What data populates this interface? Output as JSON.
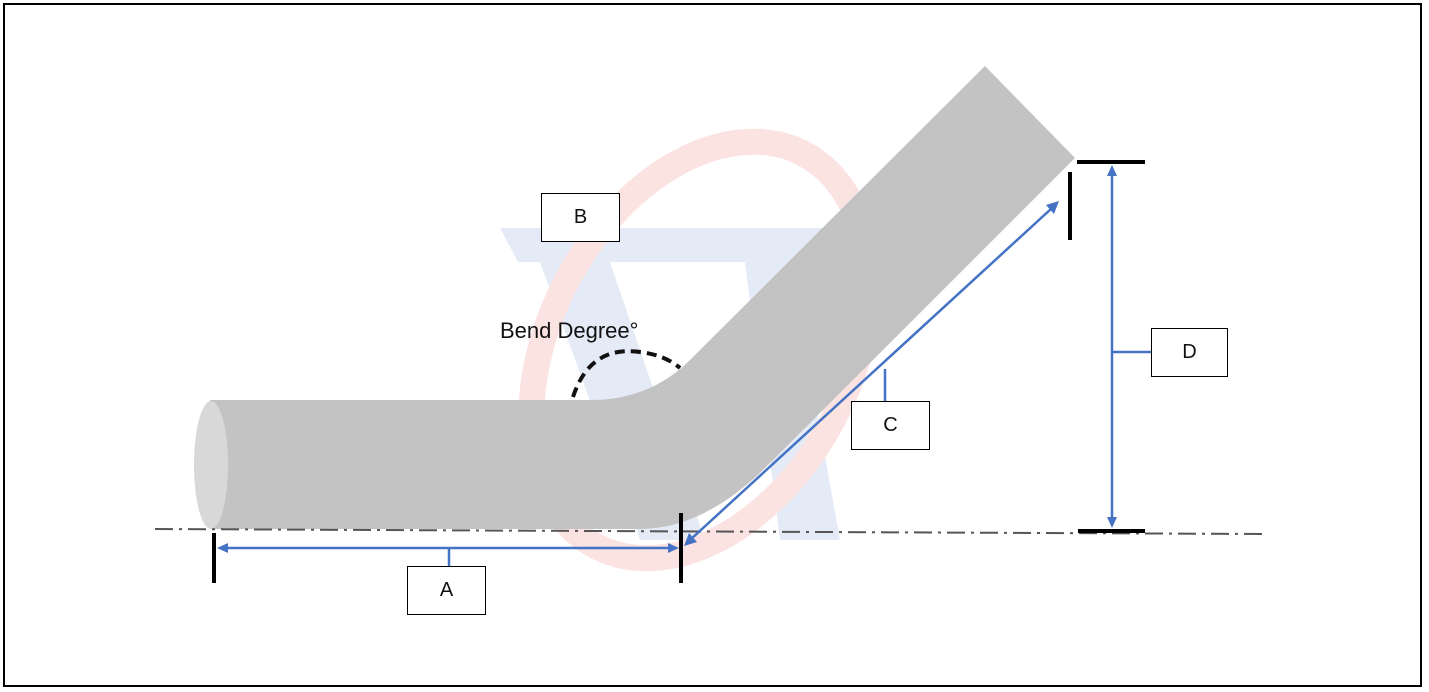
{
  "labels": {
    "a": "A",
    "b": "B",
    "c": "C",
    "d": "D",
    "bend_degree": "Bend Degree°"
  },
  "colors": {
    "pipe": "#c0c0c0",
    "pipe_end": "#d8d8d8",
    "dimension": "#4472c4",
    "tick": "#000000",
    "centerline": "#555555",
    "watermark_red": "#e8302a",
    "watermark_blue": "#3e6bbf"
  }
}
